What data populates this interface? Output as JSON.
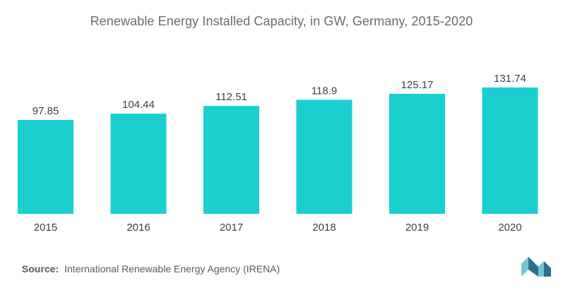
{
  "chart_data": {
    "type": "bar",
    "title": "Renewable Energy Installed Capacity, in GW, Germany, 2015-2020",
    "categories": [
      "2015",
      "2016",
      "2017",
      "2018",
      "2019",
      "2020"
    ],
    "values": [
      97.85,
      104.44,
      112.51,
      118.9,
      125.17,
      131.74
    ],
    "value_labels": [
      "97.85",
      "104.44",
      "112.51",
      "118.9",
      "125.17",
      "131.74"
    ],
    "xlabel": "",
    "ylabel": "",
    "ylim": [
      0,
      131.74
    ],
    "grid": false,
    "legend": "none",
    "bar_color": "#19cfd0"
  },
  "source": {
    "label": "Source:",
    "text": "International Renewable Energy Agency (IRENA)"
  },
  "colors": {
    "bar": "#19cfd0",
    "logo_light": "#6fc7d4",
    "logo_dark": "#2b6f8e"
  },
  "logo": {
    "icon": "mordor-logo-icon"
  }
}
